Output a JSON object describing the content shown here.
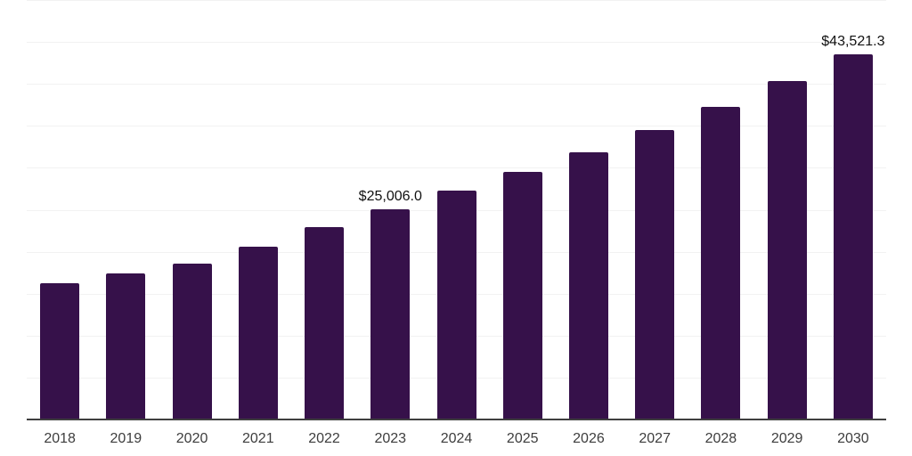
{
  "chart_data": {
    "type": "bar",
    "title": "",
    "xlabel": "",
    "ylabel": "",
    "categories": [
      "2018",
      "2019",
      "2020",
      "2021",
      "2022",
      "2023",
      "2024",
      "2025",
      "2026",
      "2027",
      "2028",
      "2029",
      "2030"
    ],
    "values": [
      16200,
      17450,
      18620,
      20600,
      22950,
      25006.0,
      27250,
      29500,
      31900,
      34500,
      37300,
      40300,
      43521.3
    ],
    "data_labels": [
      "",
      "",
      "",
      "",
      "",
      "$25,006.0",
      "",
      "",
      "",
      "",
      "",
      "",
      "$43,521.3"
    ],
    "ylim": [
      0,
      50000
    ],
    "gridline_interval": 5000,
    "grid": true,
    "legend": "none",
    "y_axis_labels_visible": false
  },
  "colors": {
    "bar": "#36114A",
    "gridline": "#F2F2F2",
    "axis_line": "#3F3F3F",
    "tick_label": "#3D3D3D",
    "data_label": "#111111",
    "background": "#FFFFFF"
  }
}
